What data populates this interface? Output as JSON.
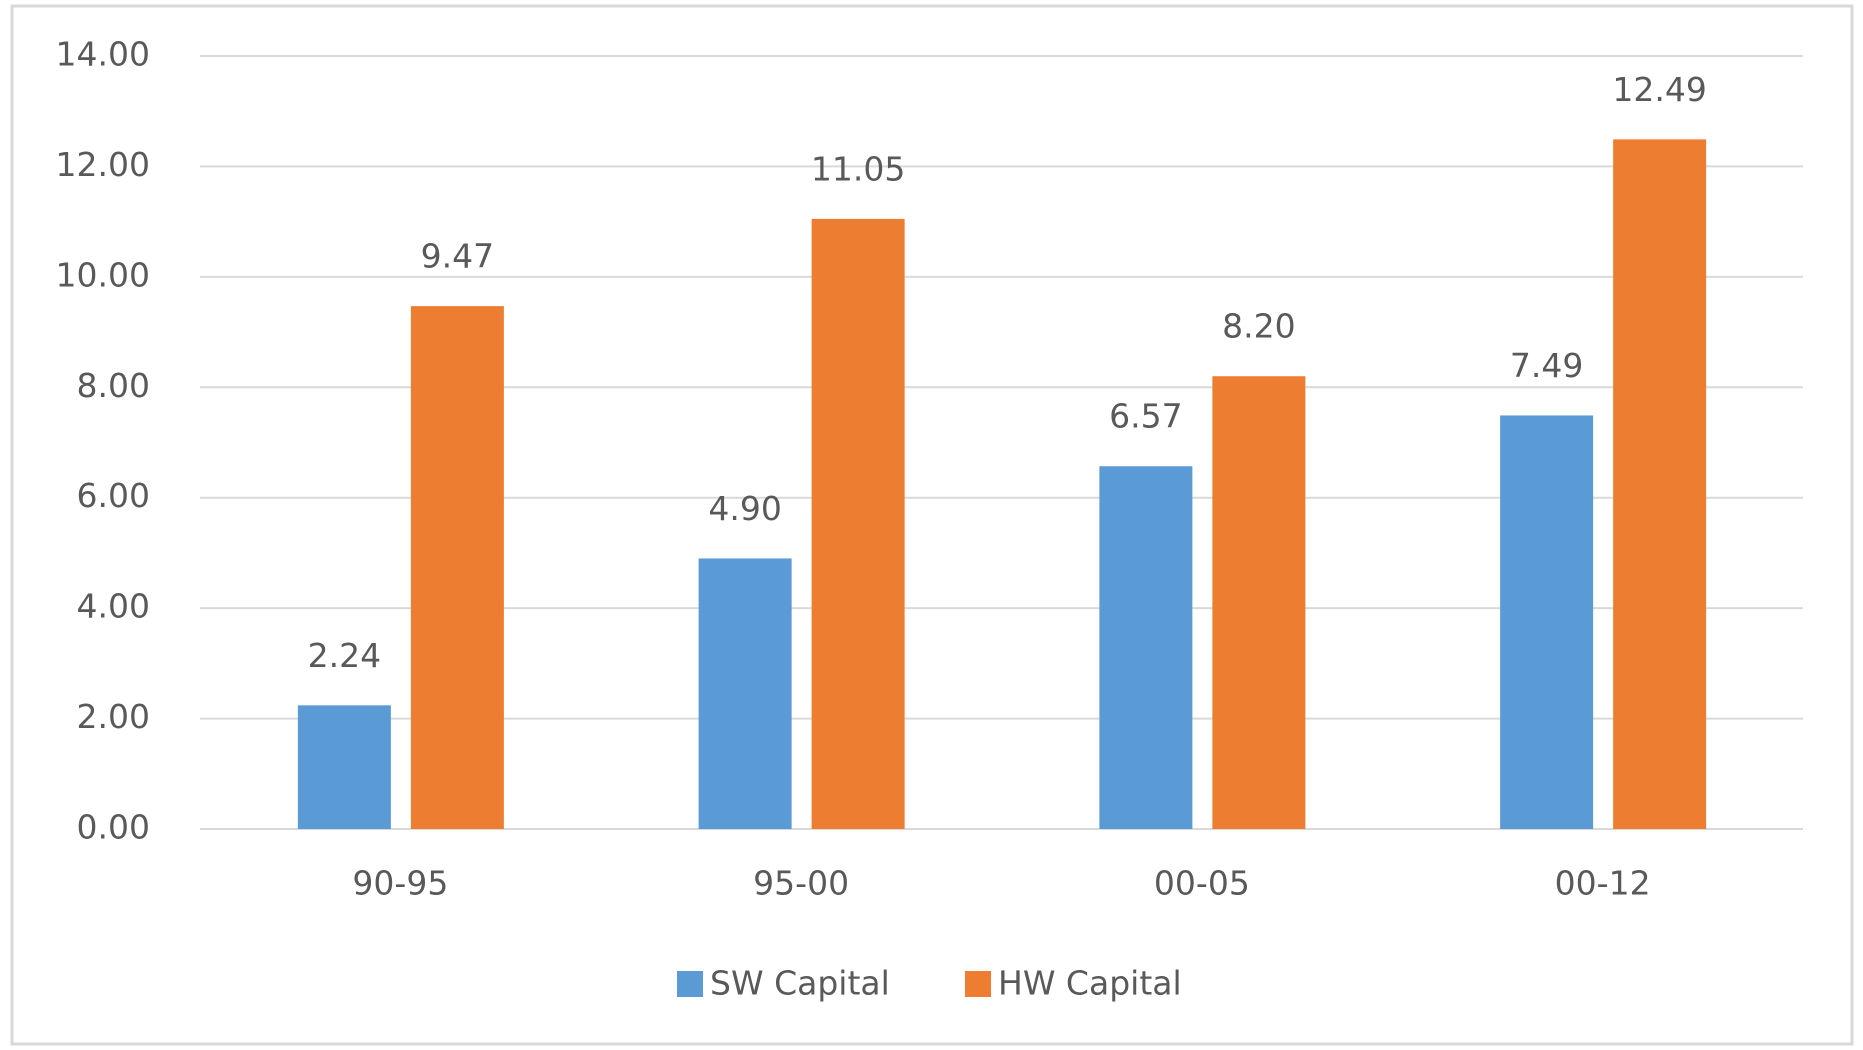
{
  "chart_data": {
    "type": "bar",
    "categories": [
      "90-95",
      "95-00",
      "00-05",
      "00-12"
    ],
    "series": [
      {
        "name": "SW Capital",
        "color": "#5b9bd5",
        "values": [
          2.24,
          4.9,
          6.57,
          7.49
        ],
        "value_labels": [
          "2.24",
          "4.90",
          "6.57",
          "7.49"
        ]
      },
      {
        "name": "HW Capital",
        "color": "#ed7d31",
        "values": [
          9.47,
          11.05,
          8.2,
          12.49
        ],
        "value_labels": [
          "9.47",
          "11.05",
          "8.20",
          "12.49"
        ]
      }
    ],
    "ylim": [
      0,
      14
    ],
    "yticks": [
      {
        "value": 0,
        "label": "0.00"
      },
      {
        "value": 2,
        "label": "2.00"
      },
      {
        "value": 4,
        "label": "4.00"
      },
      {
        "value": 6,
        "label": "6.00"
      },
      {
        "value": 8,
        "label": "8.00"
      },
      {
        "value": 10,
        "label": "10.00"
      },
      {
        "value": 12,
        "label": "12.00"
      },
      {
        "value": 14,
        "label": "14.00"
      }
    ],
    "grid": true,
    "legend": "bottom"
  }
}
